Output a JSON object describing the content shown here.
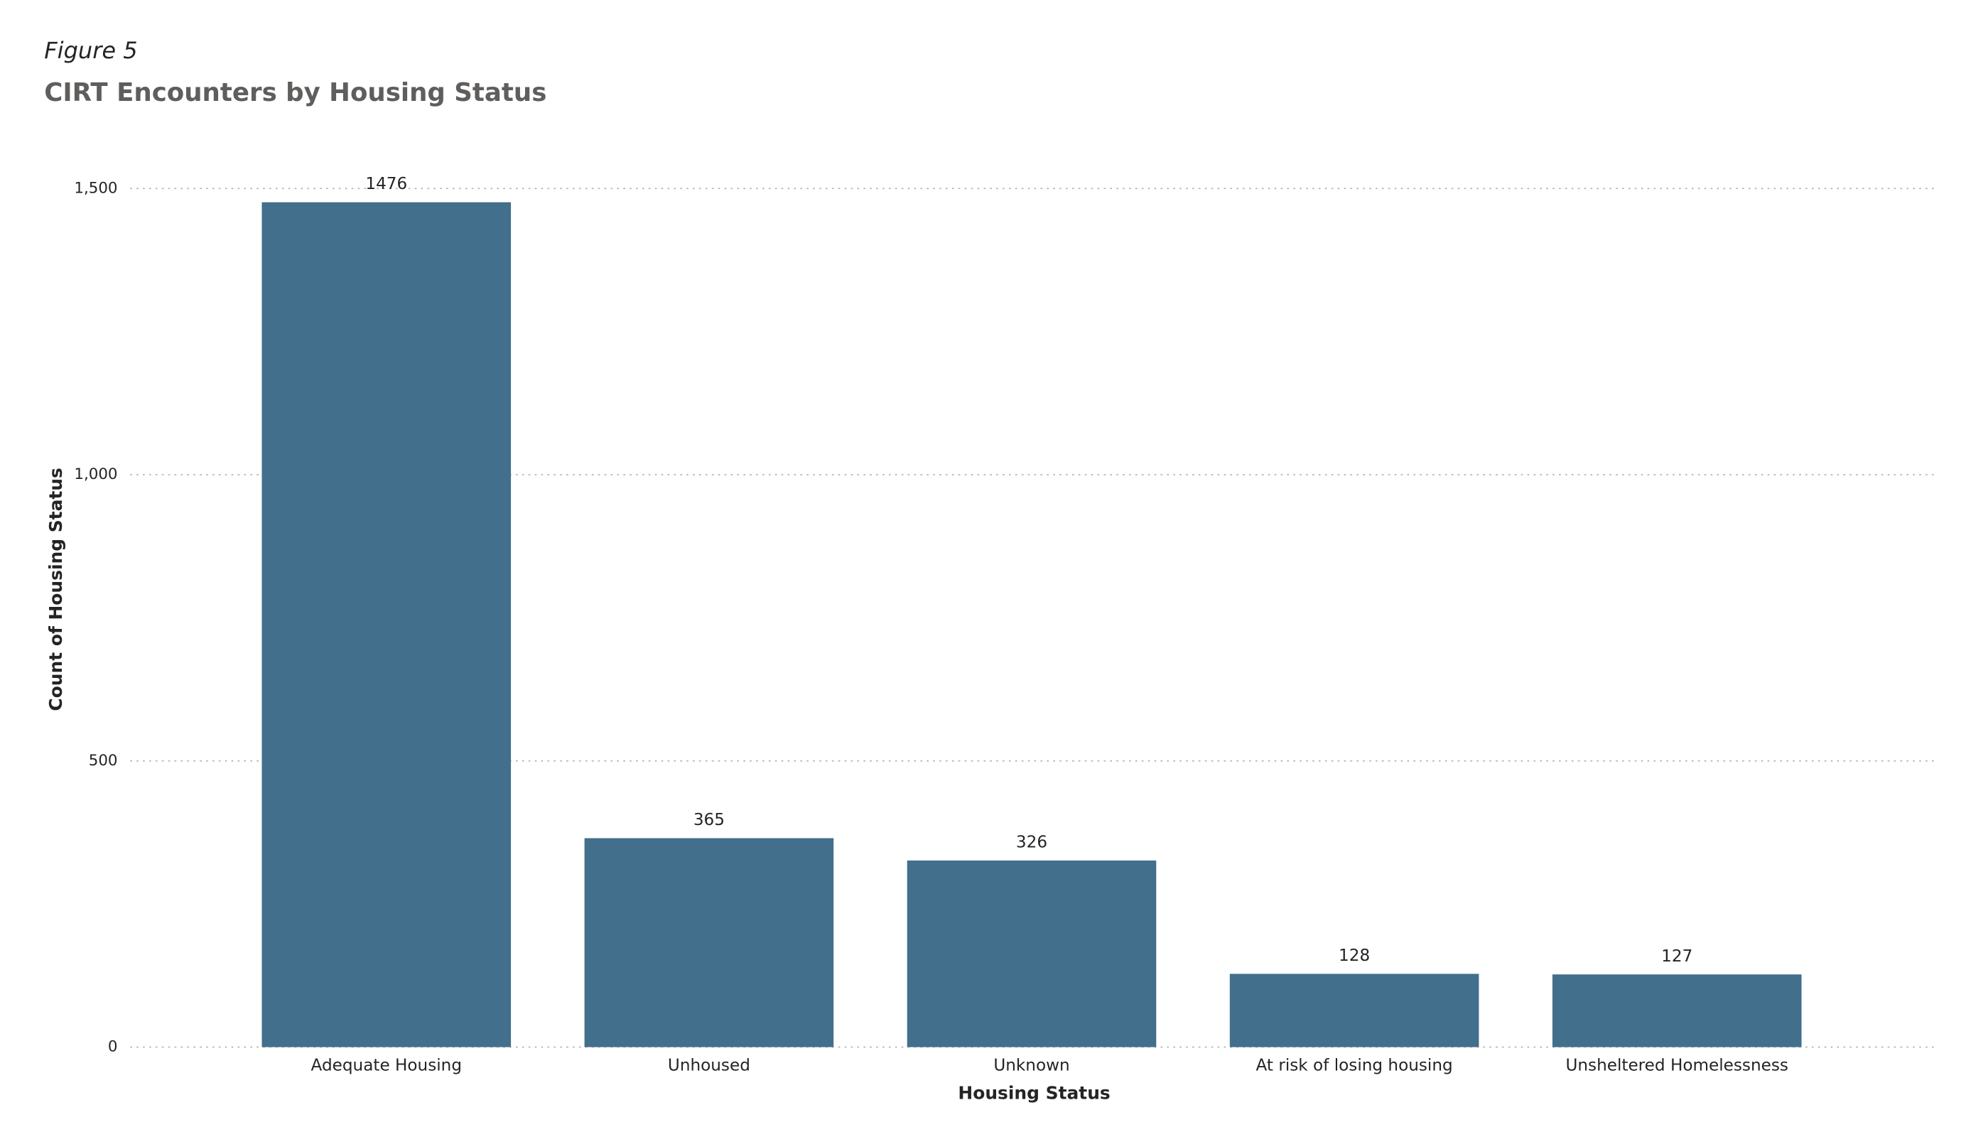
{
  "chart_data": {
    "type": "bar",
    "figure_label": "Figure 5",
    "title": "CIRT Encounters by Housing Status",
    "x_label": "Housing Status",
    "y_label": "Count of Housing Status",
    "categories": [
      "Adequate Housing",
      "Unhoused",
      "Unknown",
      "At risk of losing housing",
      "Unsheltered Homelessness"
    ],
    "values": [
      1476,
      365,
      326,
      128,
      127
    ],
    "color": "#416f8c",
    "ylim": [
      0,
      1500
    ],
    "yticks": [
      0,
      500,
      {
        "value": 1000,
        "label": "1,000"
      },
      {
        "value": 1500,
        "label": "1,500"
      }
    ],
    "grid": true
  }
}
